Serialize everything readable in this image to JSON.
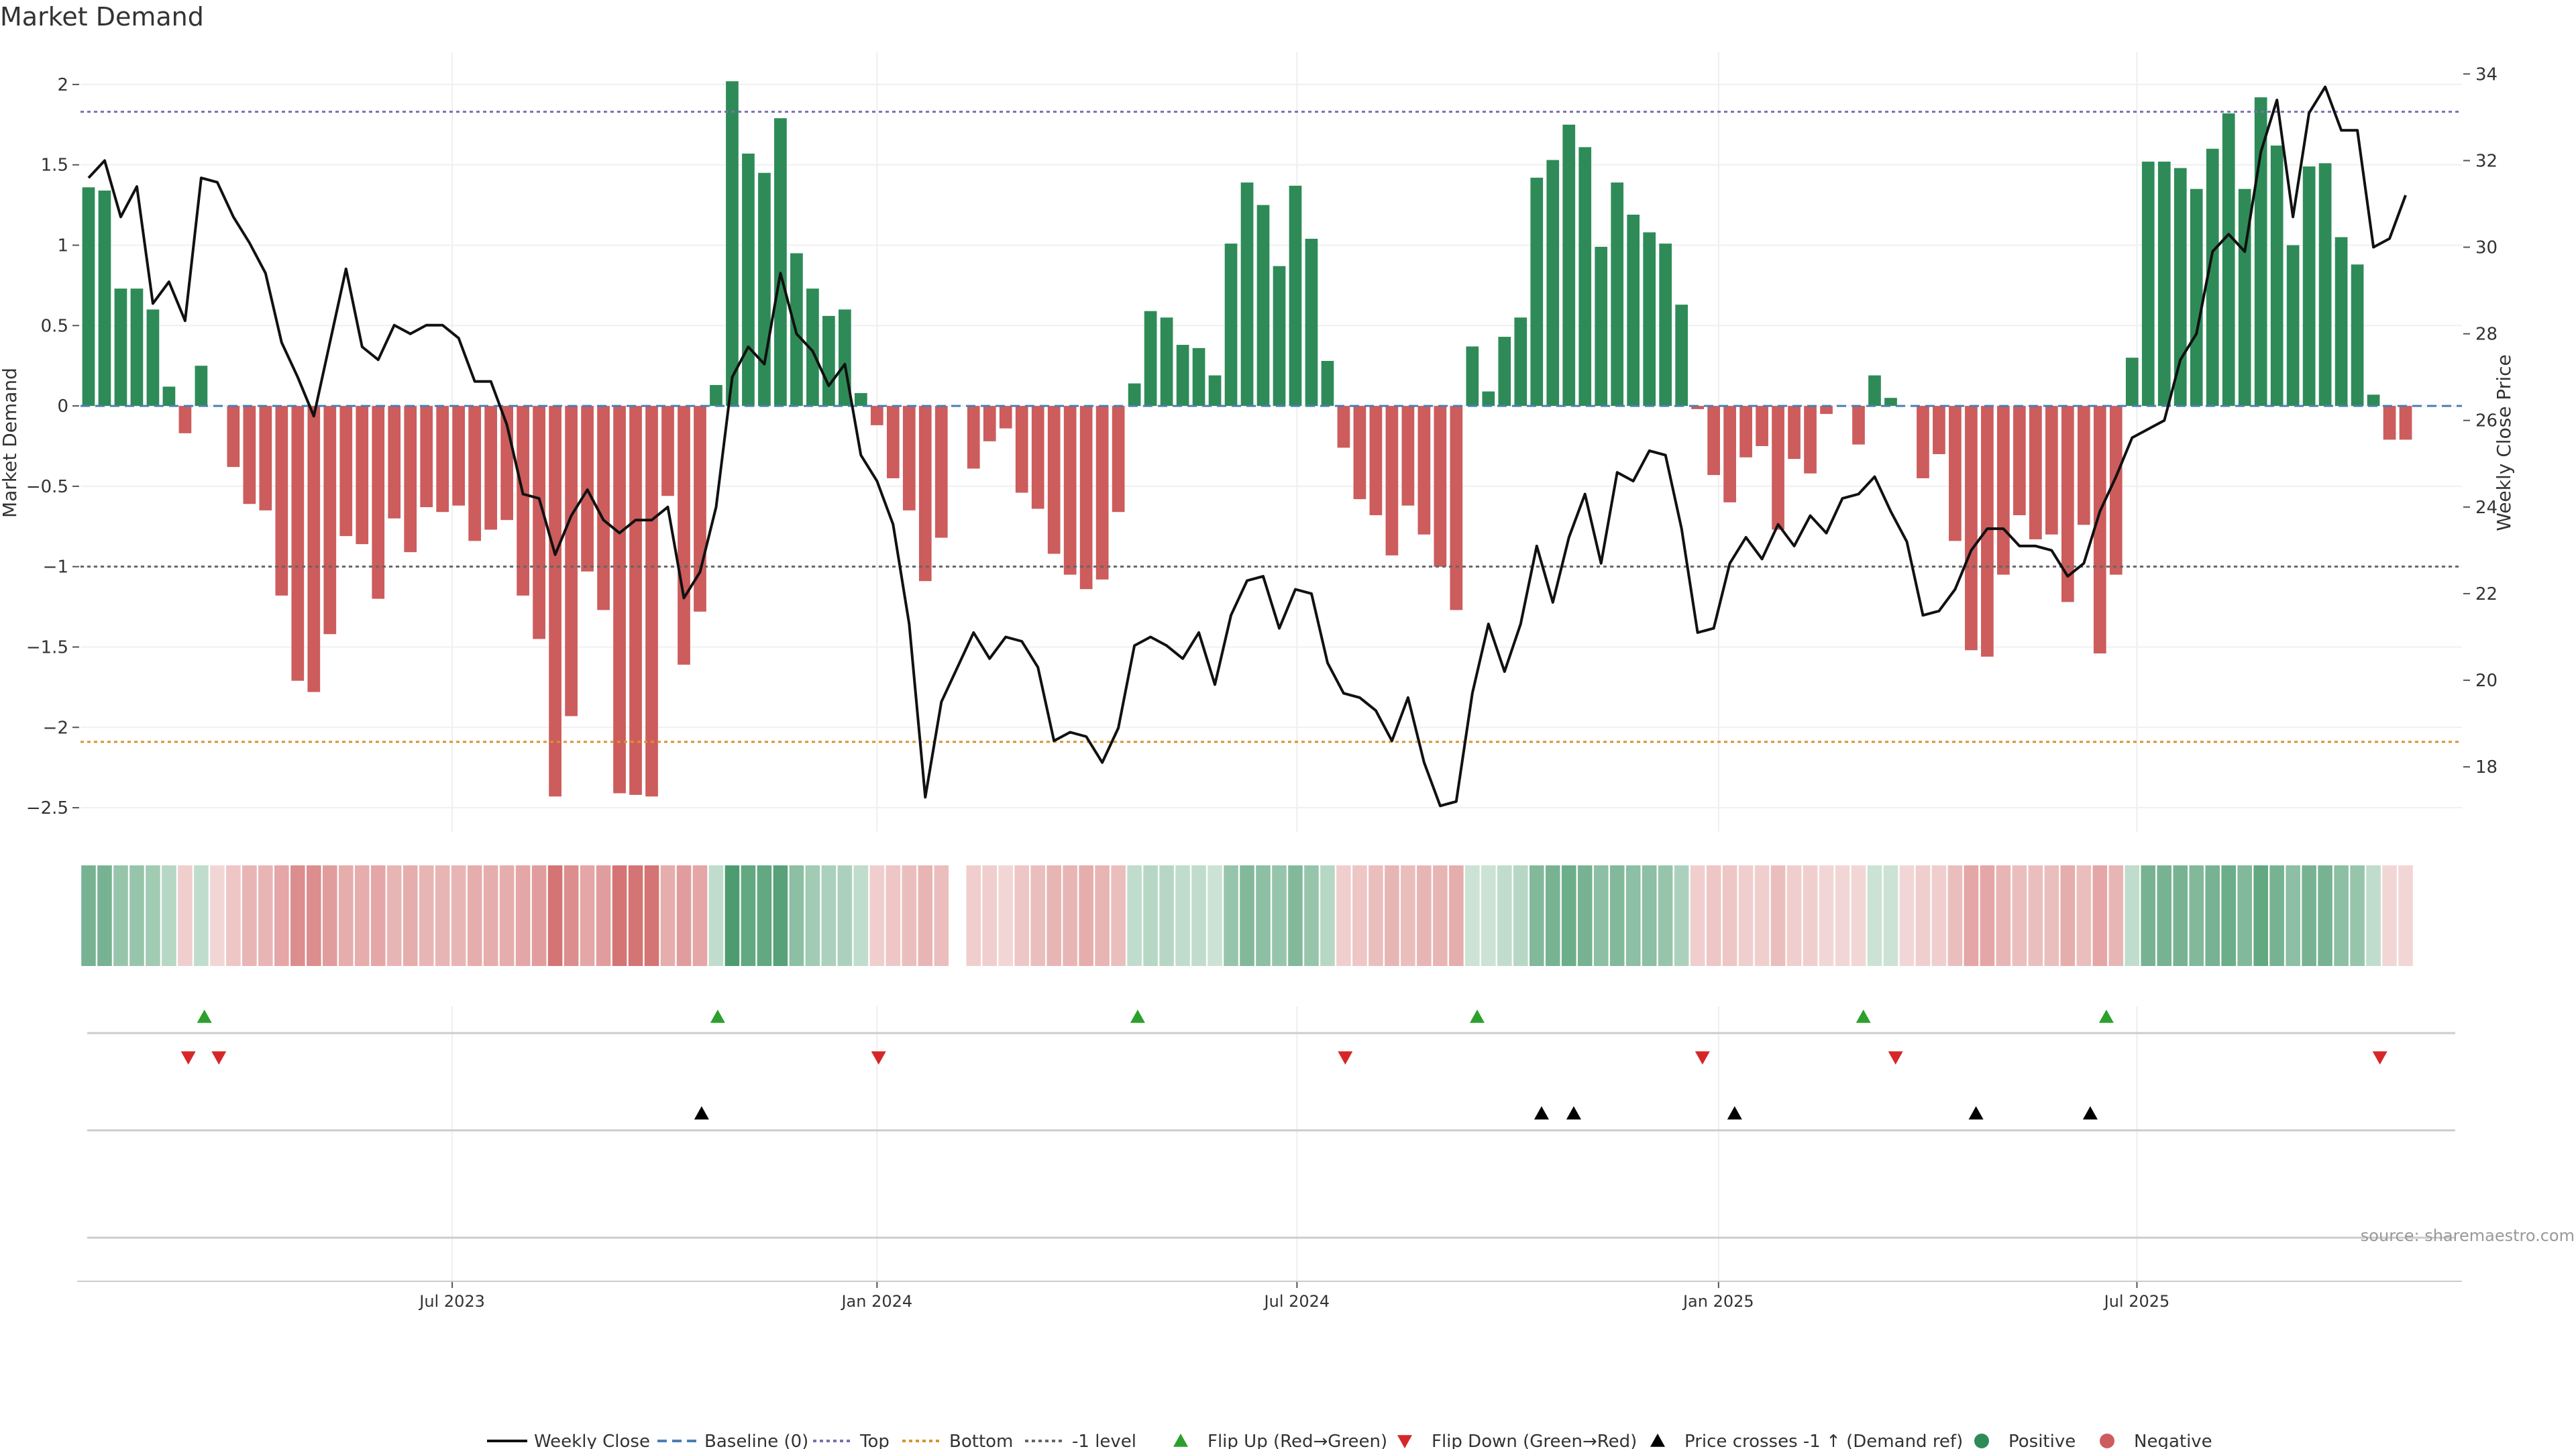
{
  "chart_data": {
    "type": "bar",
    "title": "Market Demand",
    "ylabel_left": "Market Demand",
    "ylabel_right": "Weekly Close Price",
    "ylim_left": [
      -2.65,
      2.2
    ],
    "ylim_right": [
      16.5,
      34.5
    ],
    "yticks_left": [
      "2",
      "1.5",
      "1",
      "0.5",
      "0",
      "−0.5",
      "−1",
      "−1.5",
      "−2",
      "−2.5"
    ],
    "yticks_right": [
      "34",
      "32",
      "30",
      "28",
      "26",
      "24",
      "22",
      "20",
      "18"
    ],
    "x_start": "2023-01-23",
    "weeks": 148,
    "x_tick_labels": [
      "Jul 2023",
      "Jan 2024",
      "Jul 2024",
      "Jan 2025",
      "Jul 2025"
    ],
    "x_tick_weeks": [
      22.6,
      49,
      75.1,
      101.3,
      127.3
    ],
    "reference_levels": {
      "top": 1.83,
      "bottom": -2.09,
      "minus_one": -1,
      "baseline": 0
    },
    "source": "source: sharemaestro.com",
    "legend": [
      "Weekly Close",
      "Baseline (0)",
      "Top",
      "Bottom",
      "-1 level",
      "Flip Up (Red→Green)",
      "Flip Down (Green→Red)",
      "Price crosses -1 ↑ (Demand ref)",
      "Positive",
      "Negative"
    ],
    "colors": {
      "positive": "#2e8b57",
      "negative": "#cd5c5c",
      "price": "#111111",
      "baseline": "#4a7fb5",
      "top": "#7a6fb2",
      "bottom": "#d9922e",
      "minus_one": "#666666",
      "flip_up": "#2ca02c",
      "flip_down": "#d62728",
      "cross": "#000000"
    },
    "demand": [
      1.36,
      1.34,
      0.73,
      0.73,
      0.6,
      0.12,
      -0.17,
      0.25,
      -0.01,
      -0.38,
      -0.61,
      -0.65,
      -1.18,
      -1.71,
      -1.78,
      -1.42,
      -0.81,
      -0.86,
      -1.2,
      -0.7,
      -0.91,
      -0.63,
      -0.66,
      -0.62,
      -0.84,
      -0.77,
      -0.71,
      -1.18,
      -1.45,
      -2.43,
      -1.93,
      -1.03,
      -1.27,
      -2.41,
      -2.42,
      -2.43,
      -0.56,
      -1.61,
      -1.28,
      0.13,
      2.02,
      1.57,
      1.45,
      1.79,
      0.95,
      0.73,
      0.56,
      0.6,
      0.08,
      -0.12,
      -0.45,
      -0.65,
      -1.09,
      -0.82,
      0,
      -0.39,
      -0.22,
      -0.14,
      -0.54,
      -0.64,
      -0.92,
      -1.05,
      -1.14,
      -1.08,
      -0.66,
      0.14,
      0.59,
      0.55,
      0.38,
      0.36,
      0.19,
      1.01,
      1.39,
      1.25,
      0.87,
      1.37,
      1.04,
      0.28,
      -0.26,
      -0.58,
      -0.68,
      -0.93,
      -0.62,
      -0.8,
      -1.0,
      -1.27,
      0.37,
      0.09,
      0.43,
      0.55,
      1.42,
      1.53,
      1.75,
      1.61,
      0.99,
      1.39,
      1.19,
      1.08,
      1.01,
      0.63,
      -0.02,
      -0.43,
      -0.6,
      -0.32,
      -0.25,
      -0.77,
      -0.33,
      -0.42,
      -0.05,
      -0.01,
      -0.24,
      0.19,
      0.05,
      -0.01,
      -0.45,
      -0.3,
      -0.84,
      -1.52,
      -1.56,
      -1.05,
      -0.68,
      -0.83,
      -0.8,
      -1.22,
      -0.74,
      -1.54,
      -1.05,
      0.3,
      1.52,
      1.52,
      1.48,
      1.35,
      1.6,
      1.82,
      1.35,
      1.92,
      1.62,
      1.0,
      1.49,
      1.51,
      1.05,
      0.88,
      0.07,
      -0.21,
      -0.21
    ],
    "price": [
      31.6,
      32.0,
      30.7,
      31.4,
      28.7,
      29.2,
      28.3,
      31.6,
      31.5,
      30.7,
      30.1,
      29.4,
      27.8,
      27.0,
      26.1,
      27.8,
      29.5,
      27.7,
      27.4,
      28.2,
      28.0,
      28.2,
      28.2,
      27.9,
      26.9,
      26.9,
      25.9,
      24.3,
      24.2,
      22.9,
      23.8,
      24.4,
      23.7,
      23.4,
      23.7,
      23.7,
      24.0,
      21.9,
      22.5,
      24.0,
      27.0,
      27.7,
      27.3,
      29.4,
      28.0,
      27.6,
      26.8,
      27.3,
      25.2,
      24.6,
      23.6,
      21.3,
      17.3,
      19.5,
      20.3,
      21.1,
      20.5,
      21.0,
      20.9,
      20.3,
      18.6,
      18.8,
      18.7,
      18.1,
      18.9,
      20.8,
      21.0,
      20.8,
      20.5,
      21.1,
      19.9,
      21.5,
      22.3,
      22.4,
      21.2,
      22.1,
      22.0,
      20.4,
      19.7,
      19.6,
      19.3,
      18.6,
      19.6,
      18.1,
      17.1,
      17.2,
      19.7,
      21.3,
      20.2,
      21.3,
      23.1,
      21.8,
      23.3,
      24.3,
      22.7,
      24.8,
      24.6,
      25.3,
      25.2,
      23.5,
      21.1,
      21.2,
      22.7,
      23.3,
      22.8,
      23.6,
      23.1,
      23.8,
      23.4,
      24.2,
      24.3,
      24.7,
      23.9,
      23.2,
      21.5,
      21.6,
      22.1,
      23.0,
      23.5,
      23.5,
      23.1,
      23.1,
      23.0,
      22.4,
      22.7,
      23.9,
      24.7,
      25.6,
      25.8,
      26.0,
      27.4,
      28.0,
      29.9,
      30.3,
      29.9,
      32.2,
      33.4,
      30.7,
      33.1,
      33.7,
      32.7,
      32.7,
      30.0,
      30.2,
      31.2
    ],
    "strip_alphas": [
      0.65,
      0.65,
      0.5,
      0.5,
      0.45,
      0.35,
      0.3,
      0.3,
      0.25,
      0.35,
      0.45,
      0.45,
      0.55,
      0.7,
      0.7,
      0.6,
      0.5,
      0.5,
      0.55,
      0.45,
      0.5,
      0.45,
      0.45,
      0.45,
      0.5,
      0.5,
      0.5,
      0.55,
      0.6,
      0.85,
      0.7,
      0.55,
      0.6,
      0.85,
      0.85,
      0.85,
      0.5,
      0.6,
      0.55,
      0.3,
      0.85,
      0.75,
      0.75,
      0.8,
      0.55,
      0.45,
      0.4,
      0.4,
      0.3,
      0.3,
      0.35,
      0.4,
      0.45,
      0.4,
      0,
      0.3,
      0.3,
      0.25,
      0.35,
      0.4,
      0.45,
      0.45,
      0.5,
      0.45,
      0.4,
      0.3,
      0.35,
      0.35,
      0.3,
      0.3,
      0.25,
      0.5,
      0.6,
      0.55,
      0.5,
      0.6,
      0.5,
      0.35,
      0.3,
      0.35,
      0.4,
      0.45,
      0.4,
      0.45,
      0.45,
      0.5,
      0.25,
      0.25,
      0.3,
      0.35,
      0.6,
      0.65,
      0.7,
      0.65,
      0.55,
      0.6,
      0.55,
      0.55,
      0.5,
      0.4,
      0.3,
      0.35,
      0.35,
      0.3,
      0.3,
      0.4,
      0.3,
      0.3,
      0.25,
      0.25,
      0.25,
      0.25,
      0.25,
      0.25,
      0.3,
      0.3,
      0.4,
      0.55,
      0.55,
      0.45,
      0.4,
      0.4,
      0.4,
      0.5,
      0.4,
      0.55,
      0.45,
      0.3,
      0.65,
      0.65,
      0.65,
      0.6,
      0.65,
      0.7,
      0.6,
      0.75,
      0.65,
      0.55,
      0.65,
      0.65,
      0.55,
      0.5,
      0.3,
      0.25,
      0.25
    ],
    "flip_up_weeks": [
      7.2,
      39.1,
      65.2,
      86.3,
      110.3,
      125.4
    ],
    "flip_down_weeks": [
      6.2,
      8.1,
      49.1,
      78.1,
      100.3,
      112.3,
      142.4
    ],
    "cross_weeks": [
      38.1,
      90.3,
      92.3,
      102.3,
      117.3,
      124.4
    ]
  }
}
